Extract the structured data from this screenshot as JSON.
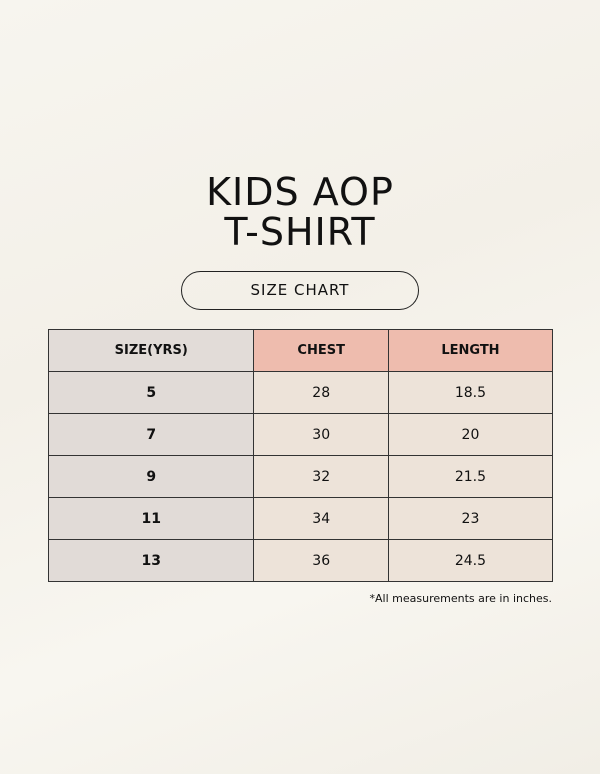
{
  "title": {
    "line1": "KIDS AOP",
    "line2": "T-SHIRT"
  },
  "subtitle": "SIZE CHART",
  "table": {
    "header": [
      "SIZE(YRS)",
      "CHEST",
      "LENGTH"
    ],
    "rows": [
      [
        "5",
        "28",
        "18.5"
      ],
      [
        "7",
        "30",
        "20"
      ],
      [
        "9",
        "32",
        "21.5"
      ],
      [
        "11",
        "34",
        "23"
      ],
      [
        "13",
        "36",
        "24.5"
      ]
    ]
  },
  "note": "*All measurements are in inches."
}
